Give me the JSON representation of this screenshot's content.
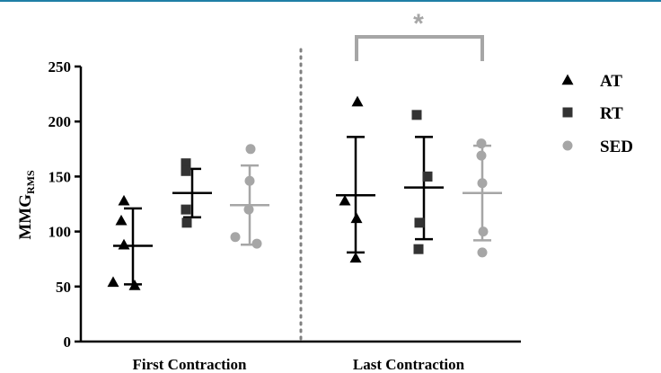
{
  "chart_data": {
    "type": "scatter",
    "ylabel_main": "MMG",
    "ylabel_sub": "RMS",
    "ylim": [
      0,
      250
    ],
    "yticks": [
      "0",
      "50",
      "100",
      "150",
      "200",
      "250"
    ],
    "groups": [
      {
        "label": "First Contraction"
      },
      {
        "label": "Last Contraction"
      }
    ],
    "series": [
      {
        "name": "AT",
        "marker": "triangle",
        "color": "#000000",
        "points": [
          [
            128,
            110,
            88,
            54,
            51
          ],
          [
            218,
            128,
            112,
            76
          ]
        ],
        "mean": [
          87,
          133
        ],
        "error": [
          [
            52,
            121
          ],
          [
            81,
            186
          ]
        ]
      },
      {
        "name": "RT",
        "marker": "square",
        "color": "#333333",
        "points": [
          [
            162,
            155,
            120,
            108
          ],
          [
            206,
            150,
            150,
            108,
            84
          ]
        ],
        "mean": [
          135,
          140
        ],
        "error": [
          [
            113,
            157
          ],
          [
            93,
            186
          ]
        ]
      },
      {
        "name": "SED",
        "marker": "circle",
        "color": "#a6a6a6",
        "points": [
          [
            175,
            146,
            120,
            95,
            89
          ],
          [
            180,
            169,
            144,
            100,
            81
          ]
        ],
        "mean": [
          124,
          135
        ],
        "error": [
          [
            88,
            160
          ],
          [
            92,
            178
          ]
        ]
      }
    ],
    "significance": {
      "label": "*",
      "color": "#a6a6a6"
    },
    "legend_position": "right",
    "grid": false
  }
}
